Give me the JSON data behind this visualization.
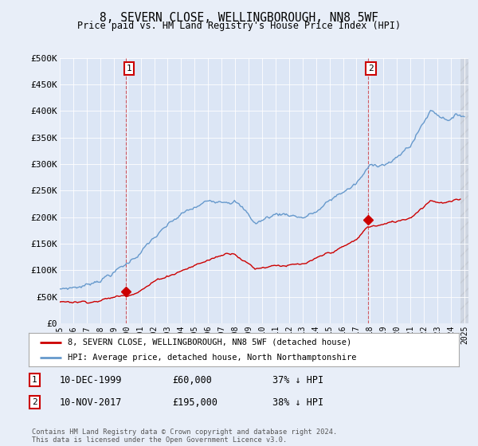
{
  "title": "8, SEVERN CLOSE, WELLINGBOROUGH, NN8 5WF",
  "subtitle": "Price paid vs. HM Land Registry's House Price Index (HPI)",
  "background_color": "#e8eef8",
  "plot_bg_color": "#dce6f5",
  "hpi_color": "#6699cc",
  "price_color": "#cc0000",
  "marker_color": "#cc0000",
  "sale1_year": 1999.92,
  "sale1_price": 60000,
  "sale2_year": 2017.87,
  "sale2_price": 195000,
  "ylim": [
    0,
    500000
  ],
  "yticks": [
    0,
    50000,
    100000,
    150000,
    200000,
    250000,
    300000,
    350000,
    400000,
    450000,
    500000
  ],
  "ytick_labels": [
    "£0",
    "£50K",
    "£100K",
    "£150K",
    "£200K",
    "£250K",
    "£300K",
    "£350K",
    "£400K",
    "£450K",
    "£500K"
  ],
  "xlim": [
    1995.0,
    2025.3
  ],
  "xtick_years": [
    1995,
    1996,
    1997,
    1998,
    1999,
    2000,
    2001,
    2002,
    2003,
    2004,
    2005,
    2006,
    2007,
    2008,
    2009,
    2010,
    2011,
    2012,
    2013,
    2014,
    2015,
    2016,
    2017,
    2018,
    2019,
    2020,
    2021,
    2022,
    2023,
    2024,
    2025
  ],
  "legend_house_label": "8, SEVERN CLOSE, WELLINGBOROUGH, NN8 5WF (detached house)",
  "legend_hpi_label": "HPI: Average price, detached house, North Northamptonshire",
  "annotation1_label": "1",
  "annotation1_date": "10-DEC-1999",
  "annotation1_price": "£60,000",
  "annotation1_pct": "37% ↓ HPI",
  "annotation2_label": "2",
  "annotation2_date": "10-NOV-2017",
  "annotation2_price": "£195,000",
  "annotation2_pct": "38% ↓ HPI",
  "footer": "Contains HM Land Registry data © Crown copyright and database right 2024.\nThis data is licensed under the Open Government Licence v3.0."
}
